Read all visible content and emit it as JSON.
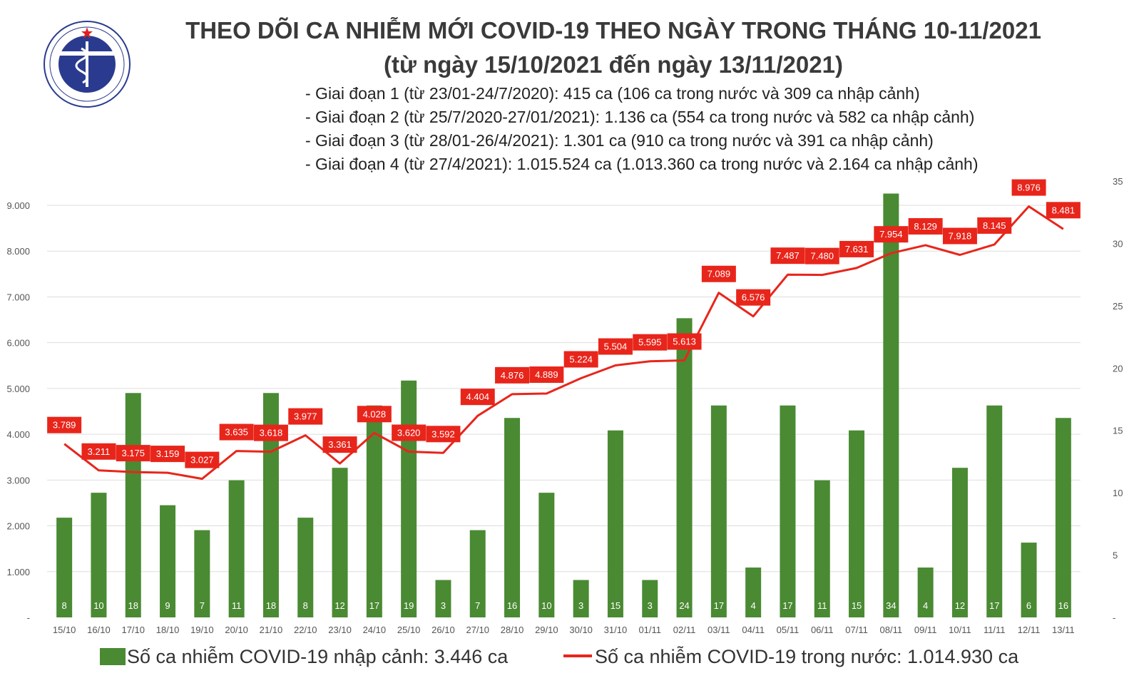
{
  "header": {
    "logo_top_text": "BỘ Y TẾ",
    "logo_bottom_text": "MINISTRY OF HEALTH",
    "title": "THEO DÕI CA NHIỄM MỚI COVID-19 THEO NGÀY TRONG THÁNG 10-11/2021",
    "subtitle": "(từ ngày 15/10/2021 đến ngày 13/11/2021)"
  },
  "stages": [
    "- Giai đoạn 1 (từ 23/01-24/7/2020): 415 ca (106 ca trong nước và 309 ca nhập cảnh)",
    "- Giai đoạn 2 (từ 25/7/2020-27/01/2021): 1.136 ca (554 ca trong nước và 582 ca nhập cảnh)",
    "- Giai đoạn 3 (từ 28/01-26/4/2021): 1.301 ca (910 ca trong nước và 391 ca nhập cảnh)",
    "- Giai đoạn 4 (từ 27/4/2021): 1.015.524 ca (1.013.360 ca trong nước và 2.164 ca nhập cảnh)"
  ],
  "legend": {
    "bar_label": "Số ca nhiễm COVID-19 nhập cảnh: 3.446 ca",
    "line_label": "Số ca nhiễm COVID-19 trong nước: 1.014.930 ca"
  },
  "colors": {
    "bar": "#4a8a33",
    "line": "#e8251b",
    "label_bg": "#e8251b",
    "label_text": "#ffffff",
    "grid": "#dddddd"
  },
  "chart_data": {
    "type": "bar+line",
    "categories": [
      "15/10",
      "16/10",
      "17/10",
      "18/10",
      "19/10",
      "20/10",
      "21/10",
      "22/10",
      "23/10",
      "24/10",
      "25/10",
      "26/10",
      "27/10",
      "28/10",
      "29/10",
      "30/10",
      "31/10",
      "01/11",
      "02/11",
      "03/11",
      "04/11",
      "05/11",
      "06/11",
      "07/11",
      "08/11",
      "09/11",
      "10/11",
      "11/11",
      "12/11",
      "13/11"
    ],
    "series": [
      {
        "name": "Số ca nhiễm COVID-19 nhập cảnh",
        "type": "bar",
        "axis": "right",
        "values": [
          8,
          10,
          18,
          9,
          7,
          11,
          18,
          8,
          12,
          17,
          19,
          3,
          7,
          16,
          10,
          3,
          15,
          3,
          24,
          17,
          4,
          17,
          11,
          15,
          34,
          4,
          12,
          17,
          6,
          16
        ]
      },
      {
        "name": "Số ca nhiễm COVID-19 trong nước",
        "type": "line",
        "axis": "left",
        "values": [
          3789,
          3211,
          3175,
          3159,
          3027,
          3635,
          3618,
          3977,
          3361,
          4028,
          3620,
          3592,
          4404,
          4876,
          4889,
          5224,
          5504,
          5595,
          5613,
          7089,
          6576,
          7487,
          7480,
          7631,
          7954,
          8129,
          7918,
          8145,
          8976,
          8481
        ],
        "labels": [
          "3.789",
          "3.211",
          "3.175",
          "3.159",
          "3.027",
          "3.635",
          "3.618",
          "3.977",
          "3.361",
          "4.028",
          "3.620",
          "3.592",
          "4.404",
          "4.876",
          "4.889",
          "5.224",
          "5.504",
          "5.595",
          "5.613",
          "7.089",
          "6.576",
          "7.487",
          "7.480",
          "7.631",
          "7.954",
          "8.129",
          "7.918",
          "8.145",
          "8.976",
          "8.481"
        ]
      }
    ],
    "y_left": {
      "ylim": [
        0,
        9000
      ],
      "ticks": [
        "-",
        "1.000",
        "2.000",
        "3.000",
        "4.000",
        "5.000",
        "6.000",
        "7.000",
        "8.000",
        "9.000"
      ]
    },
    "y_right": {
      "ylim": [
        0,
        35
      ],
      "ticks": [
        "-",
        "5",
        "10",
        "15",
        "20",
        "25",
        "30",
        "35"
      ]
    },
    "grid": true,
    "legend_position": "bottom"
  }
}
